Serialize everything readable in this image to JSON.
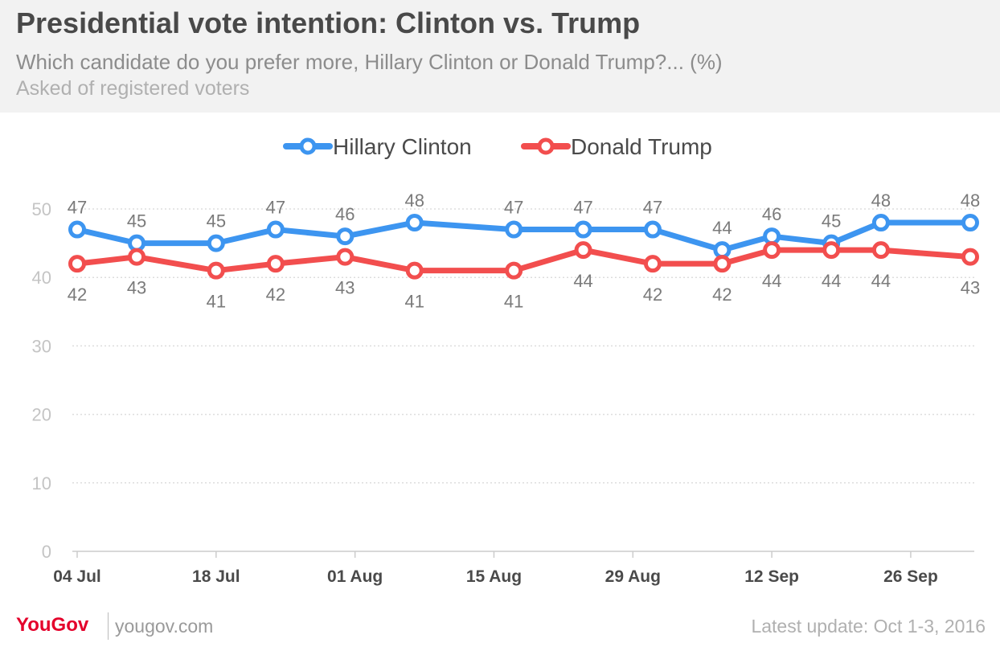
{
  "header": {
    "title": "Presidential vote intention: Clinton vs. Trump",
    "subtitle": "Which candidate do you prefer more, Hillary Clinton or Donald Trump?... (%)",
    "note": "Asked of registered voters"
  },
  "footer": {
    "brand": "YouGov",
    "url": "yougov.com",
    "update": "Latest update: Oct 1-3, 2016"
  },
  "colors": {
    "clinton": "#3d95f0",
    "trump": "#f24e4e",
    "grid": "#dddddd",
    "axis_text": "#c4c4c4",
    "label_text": "#7a7a7a"
  },
  "chart_data": {
    "type": "line",
    "title": "Presidential vote intention: Clinton vs. Trump",
    "x": [
      "2016-07-04",
      "2016-07-10",
      "2016-07-18",
      "2016-07-24",
      "2016-07-31",
      "2016-08-07",
      "2016-08-17",
      "2016-08-24",
      "2016-08-31",
      "2016-09-07",
      "2016-09-12",
      "2016-09-18",
      "2016-09-23",
      "2016-10-02"
    ],
    "series": [
      {
        "name": "Hillary Clinton",
        "values": [
          47,
          45,
          45,
          47,
          46,
          48,
          47,
          47,
          47,
          44,
          46,
          45,
          48,
          48
        ]
      },
      {
        "name": "Donald Trump",
        "values": [
          42,
          43,
          41,
          42,
          43,
          41,
          41,
          44,
          42,
          42,
          44,
          44,
          44,
          43
        ]
      }
    ],
    "xticks": [
      {
        "date": "2016-07-04",
        "label": "04 Jul"
      },
      {
        "date": "2016-07-18",
        "label": "18 Jul"
      },
      {
        "date": "2016-08-01",
        "label": "01 Aug"
      },
      {
        "date": "2016-08-15",
        "label": "15 Aug"
      },
      {
        "date": "2016-08-29",
        "label": "29 Aug"
      },
      {
        "date": "2016-09-12",
        "label": "12 Sep"
      },
      {
        "date": "2016-09-26",
        "label": "26 Sep"
      }
    ],
    "yticks": [
      0,
      10,
      20,
      30,
      40,
      50
    ],
    "xlim": [
      "2016-07-04",
      "2016-10-02"
    ],
    "ylim": [
      0,
      50
    ],
    "grid": true,
    "legend": "top-center",
    "xlabel": "",
    "ylabel": ""
  }
}
